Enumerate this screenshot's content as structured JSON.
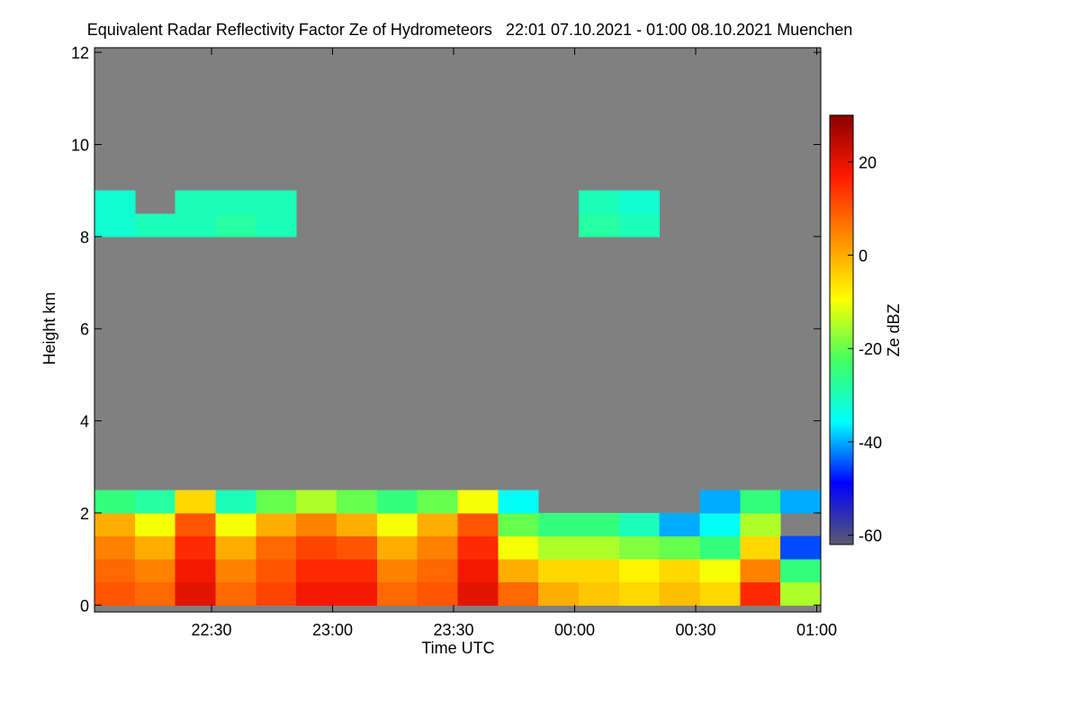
{
  "chart_data": {
    "type": "heatmap",
    "title": "Equivalent Radar Reflectivity Factor Ze of Hydrometeors   22:01 07.10.2021 - 01:00 08.10.2021 Muenchen",
    "xlabel": "Time UTC",
    "ylabel": "Height km",
    "colorbar_label": "Ze dBZ",
    "background": "#808080",
    "xlim": [
      1,
      181
    ],
    "xticks": [
      {
        "value": 30,
        "label": "22:30"
      },
      {
        "value": 60,
        "label": "23:00"
      },
      {
        "value": 90,
        "label": "23:30"
      },
      {
        "value": 120,
        "label": "00:00"
      },
      {
        "value": 150,
        "label": "00:30"
      },
      {
        "value": 180,
        "label": "01:00"
      }
    ],
    "ylim": [
      -0.15,
      12.1
    ],
    "yticks": [
      0,
      2,
      4,
      6,
      8,
      10,
      12
    ],
    "clim": [
      -62,
      30
    ],
    "cticks": [
      20,
      0,
      -20,
      -40,
      -60
    ],
    "colormap": [
      "#5a5a6e",
      "#0000ff",
      "#00ffff",
      "#40ff60",
      "#ffff00",
      "#ff8c00",
      "#ff1a00",
      "#8b0000"
    ],
    "x_edges": [
      1,
      11,
      21,
      31,
      41,
      51,
      61,
      71,
      81,
      91,
      101,
      111,
      121,
      131,
      141,
      151,
      161,
      171,
      181
    ],
    "y_edges": [
      0,
      0.5,
      1,
      1.5,
      2,
      2.5,
      3,
      3.5,
      4,
      4.5,
      5,
      5.5,
      6,
      6.5,
      7,
      7.5,
      8,
      8.5,
      9,
      9.5,
      10,
      10.5,
      11,
      11.5,
      12
    ],
    "z": [
      [
        10,
        8,
        20,
        8,
        12,
        18,
        18,
        8,
        10,
        20,
        8,
        0,
        -3,
        -5,
        -2,
        -5,
        15,
        -15
      ],
      [
        8,
        5,
        18,
        5,
        10,
        15,
        15,
        5,
        8,
        18,
        0,
        -5,
        -5,
        -8,
        -5,
        -10,
        5,
        -25
      ],
      [
        5,
        0,
        15,
        0,
        8,
        12,
        10,
        0,
        5,
        15,
        -10,
        -15,
        -15,
        -18,
        -20,
        -25,
        -5,
        -45
      ],
      [
        0,
        -10,
        10,
        -10,
        0,
        5,
        0,
        -10,
        0,
        10,
        -20,
        -25,
        -25,
        -30,
        -40,
        -35,
        -15,
        null
      ],
      [
        -25,
        -28,
        -5,
        -30,
        -20,
        -15,
        -20,
        -25,
        -20,
        -10,
        -35,
        null,
        null,
        null,
        null,
        -40,
        -25,
        -40
      ],
      [
        null,
        null,
        null,
        null,
        null,
        null,
        null,
        null,
        null,
        null,
        null,
        null,
        null,
        null,
        null,
        null,
        null,
        null
      ],
      [
        null,
        null,
        null,
        null,
        null,
        null,
        null,
        null,
        null,
        null,
        null,
        null,
        null,
        null,
        null,
        null,
        null,
        null
      ],
      [
        null,
        null,
        null,
        null,
        null,
        null,
        null,
        null,
        null,
        null,
        null,
        null,
        null,
        null,
        null,
        null,
        null,
        null
      ],
      [
        null,
        null,
        null,
        null,
        null,
        null,
        null,
        null,
        null,
        null,
        null,
        null,
        null,
        null,
        null,
        null,
        null,
        null
      ],
      [
        null,
        null,
        null,
        null,
        null,
        null,
        null,
        null,
        null,
        null,
        null,
        null,
        null,
        null,
        null,
        null,
        null,
        null
      ],
      [
        null,
        null,
        null,
        null,
        null,
        null,
        null,
        null,
        null,
        null,
        null,
        null,
        null,
        null,
        null,
        null,
        null,
        null
      ],
      [
        null,
        null,
        null,
        null,
        null,
        null,
        null,
        null,
        null,
        null,
        null,
        null,
        null,
        null,
        null,
        null,
        null,
        null
      ],
      [
        null,
        null,
        null,
        null,
        null,
        null,
        null,
        null,
        null,
        null,
        null,
        null,
        null,
        null,
        null,
        null,
        null,
        null
      ],
      [
        null,
        null,
        null,
        null,
        null,
        null,
        null,
        null,
        null,
        null,
        null,
        null,
        null,
        null,
        null,
        null,
        null,
        null
      ],
      [
        null,
        null,
        null,
        null,
        null,
        null,
        null,
        null,
        null,
        null,
        null,
        null,
        null,
        null,
        null,
        null,
        null,
        null
      ],
      [
        null,
        null,
        null,
        null,
        null,
        null,
        null,
        null,
        null,
        null,
        null,
        null,
        null,
        null,
        null,
        null,
        null,
        null
      ],
      [
        -32,
        -30,
        -30,
        -28,
        -30,
        null,
        null,
        null,
        null,
        null,
        null,
        null,
        -28,
        -30,
        null,
        null,
        null,
        null
      ],
      [
        -32,
        null,
        -30,
        -30,
        -30,
        null,
        null,
        null,
        null,
        null,
        null,
        null,
        -30,
        -32,
        null,
        null,
        null,
        null
      ],
      [
        null,
        null,
        null,
        null,
        null,
        null,
        null,
        null,
        null,
        null,
        null,
        null,
        null,
        null,
        null,
        null,
        null,
        null
      ],
      [
        null,
        null,
        null,
        null,
        null,
        null,
        null,
        null,
        null,
        null,
        null,
        null,
        null,
        null,
        null,
        null,
        null,
        null
      ],
      [
        null,
        null,
        null,
        null,
        null,
        null,
        null,
        null,
        null,
        null,
        null,
        null,
        null,
        null,
        null,
        null,
        null,
        null
      ],
      [
        null,
        null,
        null,
        null,
        null,
        null,
        null,
        null,
        null,
        null,
        null,
        null,
        null,
        null,
        null,
        null,
        null,
        null
      ],
      [
        null,
        null,
        null,
        null,
        null,
        null,
        null,
        null,
        null,
        null,
        null,
        null,
        null,
        null,
        null,
        null,
        null,
        null
      ],
      [
        null,
        null,
        null,
        null,
        null,
        null,
        null,
        null,
        null,
        null,
        null,
        null,
        null,
        null,
        null,
        null,
        null,
        null
      ]
    ]
  }
}
